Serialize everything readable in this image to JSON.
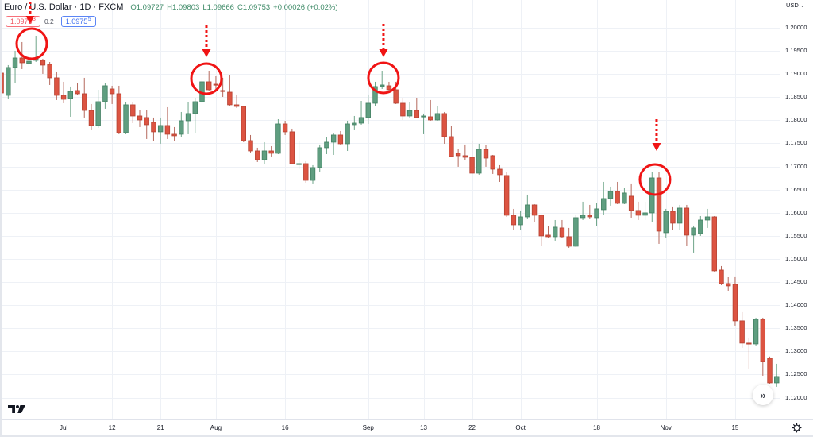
{
  "legend": {
    "symbol_title": "Euro / U.S. Dollar · 1D · FXCM",
    "ohlc": [
      {
        "label": "O",
        "value": "1.09727"
      },
      {
        "label": "H",
        "value": "1.09803"
      },
      {
        "label": "L",
        "value": "1.09666"
      },
      {
        "label": "C",
        "value": "1.09753"
      }
    ],
    "change": "+0.00026 (+0.02%)",
    "sell": {
      "price": "1.0975",
      "pip": "3"
    },
    "spread": "0.2",
    "buy": {
      "price": "1.0975",
      "pip": "5"
    }
  },
  "price_axis": {
    "currency": "USD",
    "currency_dropdown_glyph": "⌄"
  },
  "icons": {
    "scroll_to_realtime": "»",
    "settings": "gear-icon",
    "logo": "tradingview-logo-icon"
  },
  "chart_data": {
    "type": "candlestick",
    "title": "Euro / U.S. Dollar · 1D · FXCM",
    "xlabel": "",
    "ylabel": "USD",
    "ylim": [
      1.11546,
      1.20601
    ],
    "xlim": [
      -0.1835,
      112.43
    ],
    "grid": true,
    "legend_position": "top-left",
    "colors": {
      "up_body": "#5f9e80",
      "up_border": "#417f61",
      "up_wick": "#6ea589",
      "down_body": "#dc5442",
      "down_border": "#b54131",
      "down_wick": "#b5695d",
      "annotation": "#f01414"
    },
    "y_ticks": [
      1.2,
      1.195,
      1.19,
      1.185,
      1.18,
      1.175,
      1.17,
      1.165,
      1.16,
      1.155,
      1.15,
      1.145,
      1.14,
      1.135,
      1.13,
      1.125,
      1.12
    ],
    "y_tick_labels": [
      "1.20000",
      "1.19500",
      "1.19000",
      "1.18500",
      "1.18000",
      "1.17500",
      "1.17000",
      "1.16500",
      "1.16000",
      "1.15500",
      "1.15000",
      "1.14500",
      "1.14000",
      "1.13500",
      "1.13000",
      "1.12500",
      "1.12000"
    ],
    "x_ticks": [
      {
        "index": 9,
        "label": "Jul"
      },
      {
        "index": 16,
        "label": "12"
      },
      {
        "index": 23,
        "label": "21"
      },
      {
        "index": 31,
        "label": "Aug"
      },
      {
        "index": 41,
        "label": "16"
      },
      {
        "index": 53,
        "label": "Sep"
      },
      {
        "index": 61,
        "label": "13"
      },
      {
        "index": 68,
        "label": "22"
      },
      {
        "index": 75,
        "label": "Oct"
      },
      {
        "index": 86,
        "label": "18"
      },
      {
        "index": 96,
        "label": "Nov"
      },
      {
        "index": 106,
        "label": "15"
      }
    ],
    "ohlc_fields": [
      "open",
      "high",
      "low",
      "close"
    ],
    "candles": [
      [
        1.19021,
        1.19055,
        1.18557,
        1.18591
      ],
      [
        1.1854,
        1.19193,
        1.18471,
        1.19141
      ],
      [
        1.19141,
        1.19502,
        1.18797,
        1.19347
      ],
      [
        1.19347,
        1.19691,
        1.19107,
        1.19244
      ],
      [
        1.19227,
        1.19536,
        1.19158,
        1.19278
      ],
      [
        1.19296,
        1.19828,
        1.19261,
        1.19347
      ],
      [
        1.19296,
        1.1933,
        1.19004,
        1.19193
      ],
      [
        1.1921,
        1.19261,
        1.18763,
        1.18918
      ],
      [
        1.18918,
        1.19055,
        1.18437,
        1.1854
      ],
      [
        1.1854,
        1.18832,
        1.18368,
        1.18454
      ],
      [
        1.18471,
        1.18729,
        1.18076,
        1.18626
      ],
      [
        1.18643,
        1.18797,
        1.1854,
        1.18574
      ],
      [
        1.18574,
        1.18918,
        1.18059,
        1.18213
      ],
      [
        1.18213,
        1.18351,
        1.17801,
        1.17887
      ],
      [
        1.17887,
        1.1866,
        1.17835,
        1.18402
      ],
      [
        1.18402,
        1.18797,
        1.18248,
        1.18746
      ],
      [
        1.18677,
        1.18746,
        1.18351,
        1.18574
      ],
      [
        1.18574,
        1.18746,
        1.17698,
        1.17732
      ],
      [
        1.17732,
        1.18402,
        1.17698,
        1.18334
      ],
      [
        1.18334,
        1.18402,
        1.17938,
        1.18093
      ],
      [
        1.18093,
        1.1823,
        1.17853,
        1.18007
      ],
      [
        1.18059,
        1.1823,
        1.17595,
        1.17904
      ],
      [
        1.17956,
        1.18059,
        1.1756,
        1.1775
      ],
      [
        1.1775,
        1.18059,
        1.17492,
        1.17887
      ],
      [
        1.17887,
        1.18282,
        1.17595,
        1.17698
      ],
      [
        1.17698,
        1.17853,
        1.1756,
        1.17664
      ],
      [
        1.17698,
        1.18179,
        1.17629,
        1.1799
      ],
      [
        1.1799,
        1.18385,
        1.17698,
        1.18145
      ],
      [
        1.18145,
        1.18488,
        1.17715,
        1.18402
      ],
      [
        1.18402,
        1.18918,
        1.18368,
        1.18832
      ],
      [
        1.18832,
        1.19072,
        1.18626,
        1.1866
      ],
      [
        1.1878,
        1.18952,
        1.18677,
        1.18763
      ],
      [
        1.18643,
        1.18918,
        1.18505,
        1.18626
      ],
      [
        1.18608,
        1.18969,
        1.18316,
        1.18334
      ],
      [
        1.18334,
        1.18557,
        1.18265,
        1.18299
      ],
      [
        1.18299,
        1.18316,
        1.17526,
        1.1756
      ],
      [
        1.1756,
        1.17681,
        1.17303,
        1.17337
      ],
      [
        1.17337,
        1.17406,
        1.17097,
        1.17148
      ],
      [
        1.17148,
        1.17526,
        1.17045,
        1.17337
      ],
      [
        1.17337,
        1.1744,
        1.17217,
        1.17286
      ],
      [
        1.17286,
        1.18024,
        1.17268,
        1.17921
      ],
      [
        1.17921,
        1.1799,
        1.17681,
        1.1775
      ],
      [
        1.1775,
        1.17818,
        1.17045,
        1.17062
      ],
      [
        1.17045,
        1.1756,
        1.16942,
        1.17062
      ],
      [
        1.17062,
        1.17114,
        1.1665,
        1.16701
      ],
      [
        1.16701,
        1.17028,
        1.16633,
        1.16976
      ],
      [
        1.16976,
        1.17475,
        1.1689,
        1.17406
      ],
      [
        1.17406,
        1.17629,
        1.17268,
        1.17526
      ],
      [
        1.17526,
        1.17732,
        1.17251,
        1.17681
      ],
      [
        1.17681,
        1.17767,
        1.17457,
        1.17492
      ],
      [
        1.17492,
        1.1799,
        1.17337,
        1.17921
      ],
      [
        1.17904,
        1.18093,
        1.17801,
        1.17938
      ],
      [
        1.17938,
        1.18419,
        1.17904,
        1.18059
      ],
      [
        1.18059,
        1.18557,
        1.17921,
        1.18368
      ],
      [
        1.18368,
        1.18832,
        1.18316,
        1.18729
      ],
      [
        1.18729,
        1.19072,
        1.18677,
        1.18763
      ],
      [
        1.18746,
        1.18832,
        1.18626,
        1.1866
      ],
      [
        1.1866,
        1.18832,
        1.18351,
        1.18368
      ],
      [
        1.18368,
        1.18488,
        1.18007,
        1.18093
      ],
      [
        1.18093,
        1.18385,
        1.18041,
        1.18213
      ],
      [
        1.18213,
        1.18488,
        1.1805,
        1.18059
      ],
      [
        1.18076,
        1.18145,
        1.17698,
        1.18093
      ],
      [
        1.18076,
        1.18437,
        1.1799,
        1.18007
      ],
      [
        1.18007,
        1.18299,
        1.1799,
        1.18145
      ],
      [
        1.18145,
        1.18179,
        1.17492,
        1.17646
      ],
      [
        1.17646,
        1.1787,
        1.172,
        1.17217
      ],
      [
        1.17286,
        1.17371,
        1.16994,
        1.17234
      ],
      [
        1.17234,
        1.17475,
        1.17131,
        1.172
      ],
      [
        1.172,
        1.17543,
        1.16839,
        1.16856
      ],
      [
        1.16856,
        1.17492,
        1.16822,
        1.17371
      ],
      [
        1.17371,
        1.17457,
        1.16994,
        1.17182
      ],
      [
        1.17234,
        1.17251,
        1.16839,
        1.16942
      ],
      [
        1.16942,
        1.17028,
        1.16667,
        1.16822
      ],
      [
        1.16805,
        1.16873,
        1.15911,
        1.15946
      ],
      [
        1.15946,
        1.16083,
        1.15619,
        1.15739
      ],
      [
        1.15739,
        1.16049,
        1.15619,
        1.15911
      ],
      [
        1.15911,
        1.16392,
        1.15877,
        1.16169
      ],
      [
        1.16169,
        1.16186,
        1.15791,
        1.15946
      ],
      [
        1.15946,
        1.15963,
        1.15276,
        1.15499
      ],
      [
        1.15516,
        1.15705,
        1.15465,
        1.15482
      ],
      [
        1.15482,
        1.15842,
        1.15396,
        1.15688
      ],
      [
        1.15671,
        1.15842,
        1.15447,
        1.15482
      ],
      [
        1.15482,
        1.15671,
        1.15241,
        1.15276
      ],
      [
        1.15276,
        1.15963,
        1.15258,
        1.15894
      ],
      [
        1.15894,
        1.16238,
        1.15842,
        1.15946
      ],
      [
        1.15946,
        1.16169,
        1.15877,
        1.15911
      ],
      [
        1.15894,
        1.16203,
        1.15705,
        1.16083
      ],
      [
        1.16066,
        1.16667,
        1.15946,
        1.16306
      ],
      [
        1.16306,
        1.16564,
        1.16152,
        1.16461
      ],
      [
        1.16461,
        1.16667,
        1.16186,
        1.16203
      ],
      [
        1.16203,
        1.1653,
        1.16186,
        1.16427
      ],
      [
        1.16358,
        1.16633,
        1.15894,
        1.16049
      ],
      [
        1.16049,
        1.16238,
        1.15842,
        1.15946
      ],
      [
        1.15946,
        1.16238,
        1.15842,
        1.15997
      ],
      [
        1.15997,
        1.1689,
        1.15791,
        1.16753
      ],
      [
        1.16753,
        1.16873,
        1.15327,
        1.15602
      ],
      [
        1.15568,
        1.16083,
        1.15465,
        1.16031
      ],
      [
        1.16031,
        1.16135,
        1.15619,
        1.15774
      ],
      [
        1.15774,
        1.16169,
        1.15619,
        1.161
      ],
      [
        1.161,
        1.16169,
        1.15276,
        1.15516
      ],
      [
        1.15516,
        1.15722,
        1.15138,
        1.15671
      ],
      [
        1.1555,
        1.15928,
        1.15499,
        1.15842
      ],
      [
        1.15842,
        1.16083,
        1.15671,
        1.15911
      ],
      [
        1.15911,
        1.15928,
        1.14726,
        1.14743
      ],
      [
        1.1476,
        1.14846,
        1.14434,
        1.14468
      ],
      [
        1.14468,
        1.14606,
        1.14313,
        1.14417
      ],
      [
        1.14451,
        1.14623,
        1.13558,
        1.13661
      ],
      [
        1.13661,
        1.1385,
        1.13077,
        1.1318
      ],
      [
        1.1318,
        1.133,
        1.1263,
        1.13162
      ],
      [
        1.13162,
        1.13729,
        1.13128,
        1.13695
      ],
      [
        1.13695,
        1.13729,
        1.12475,
        1.12784
      ],
      [
        1.12853,
        1.12889,
        1.12303,
        1.1232
      ],
      [
        1.1232,
        1.12733,
        1.12235,
        1.12458
      ]
    ],
    "annotations": {
      "circles": [
        {
          "index": 4.4,
          "price": 1.19656,
          "radius_px": 19
        },
        {
          "index": 29.63,
          "price": 1.189,
          "radius_px": 19
        },
        {
          "index": 55.2,
          "price": 1.18918,
          "radius_px": 19
        },
        {
          "index": 94.42,
          "price": 1.16718,
          "radius_px": 19
        }
      ],
      "arrows": [
        {
          "index": 4.17,
          "from_price": 1.20567,
          "to_price": 1.20086
        },
        {
          "index": 29.63,
          "from_price": 1.20052,
          "to_price": 1.19364
        },
        {
          "index": 55.2,
          "from_price": 1.20086,
          "to_price": 1.19364
        },
        {
          "index": 94.65,
          "from_price": 1.18024,
          "to_price": 1.17337
        }
      ]
    }
  }
}
